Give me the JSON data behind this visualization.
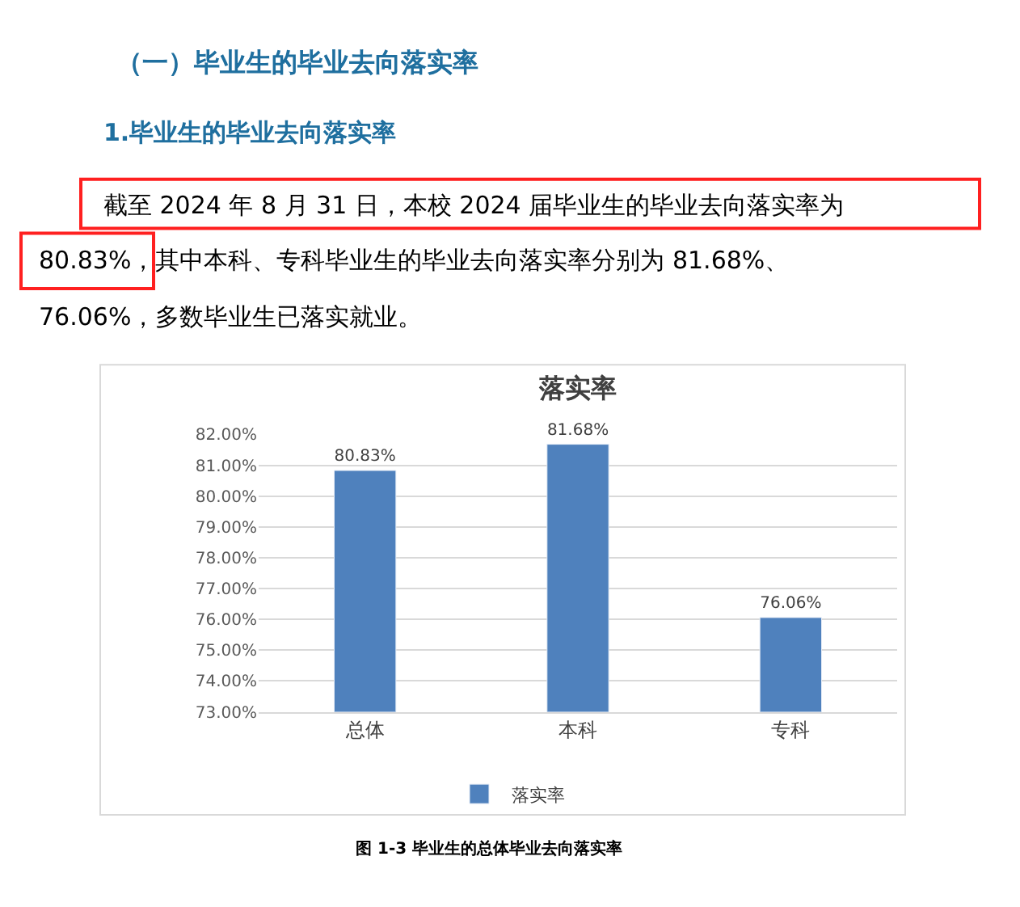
{
  "chart_data": {
    "type": "bar",
    "title": "落实率",
    "categories": [
      "总体",
      "本科",
      "专科"
    ],
    "series": [
      {
        "name": "落实率",
        "color": "#4f81bd",
        "values": [
          80.83,
          81.68,
          76.06
        ],
        "value_labels": [
          "80.83%",
          "81.68%",
          "76.06%"
        ]
      }
    ],
    "ylim": [
      73,
      82
    ],
    "yticks": [
      {
        "value": 73,
        "label": "73.00%"
      },
      {
        "value": 74,
        "label": "74.00%"
      },
      {
        "value": 75,
        "label": "75.00%"
      },
      {
        "value": 76,
        "label": "76.00%"
      },
      {
        "value": 77,
        "label": "77.00%"
      },
      {
        "value": 78,
        "label": "78.00%"
      },
      {
        "value": 79,
        "label": "79.00%"
      },
      {
        "value": 80,
        "label": "80.00%"
      },
      {
        "value": 81,
        "label": "81.00%"
      },
      {
        "value": 82,
        "label": "82.00%"
      }
    ],
    "grid": "y",
    "legend": "bottom",
    "annotations": [
      "（一）毕业生的毕业去向落实率",
      "1.毕业生的毕业去向落实率",
      "截至 2024 年 8 月 31 日，本校 2024 届毕业生的毕业去向落实率为",
      "80.83%，其中本科、专科毕业生的毕业去向落实率分别为 81.68%、",
      "76.06%，多数毕业生已落实就业。",
      "图 1-3 毕业生的总体毕业去向落实率"
    ]
  }
}
